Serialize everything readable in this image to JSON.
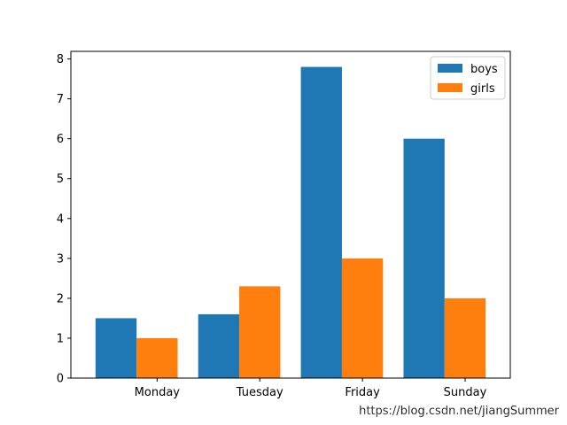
{
  "chart_data": {
    "type": "bar",
    "categories": [
      "Monday",
      "Tuesday",
      "Friday",
      "Sunday"
    ],
    "series": [
      {
        "name": "boys",
        "values": [
          1.5,
          1.6,
          7.8,
          6.0
        ],
        "color": "#1f77b4"
      },
      {
        "name": "girls",
        "values": [
          1.0,
          2.3,
          3.0,
          2.0
        ],
        "color": "#ff7f0e"
      }
    ],
    "title": "",
    "xlabel": "",
    "ylabel": "",
    "ylim": [
      0,
      8.19
    ],
    "yticks": [
      0,
      1,
      2,
      3,
      4,
      5,
      6,
      7,
      8
    ],
    "grid": false,
    "legend_position": "top-right"
  },
  "watermark": "https://blog.csdn.net/jiangSummer"
}
